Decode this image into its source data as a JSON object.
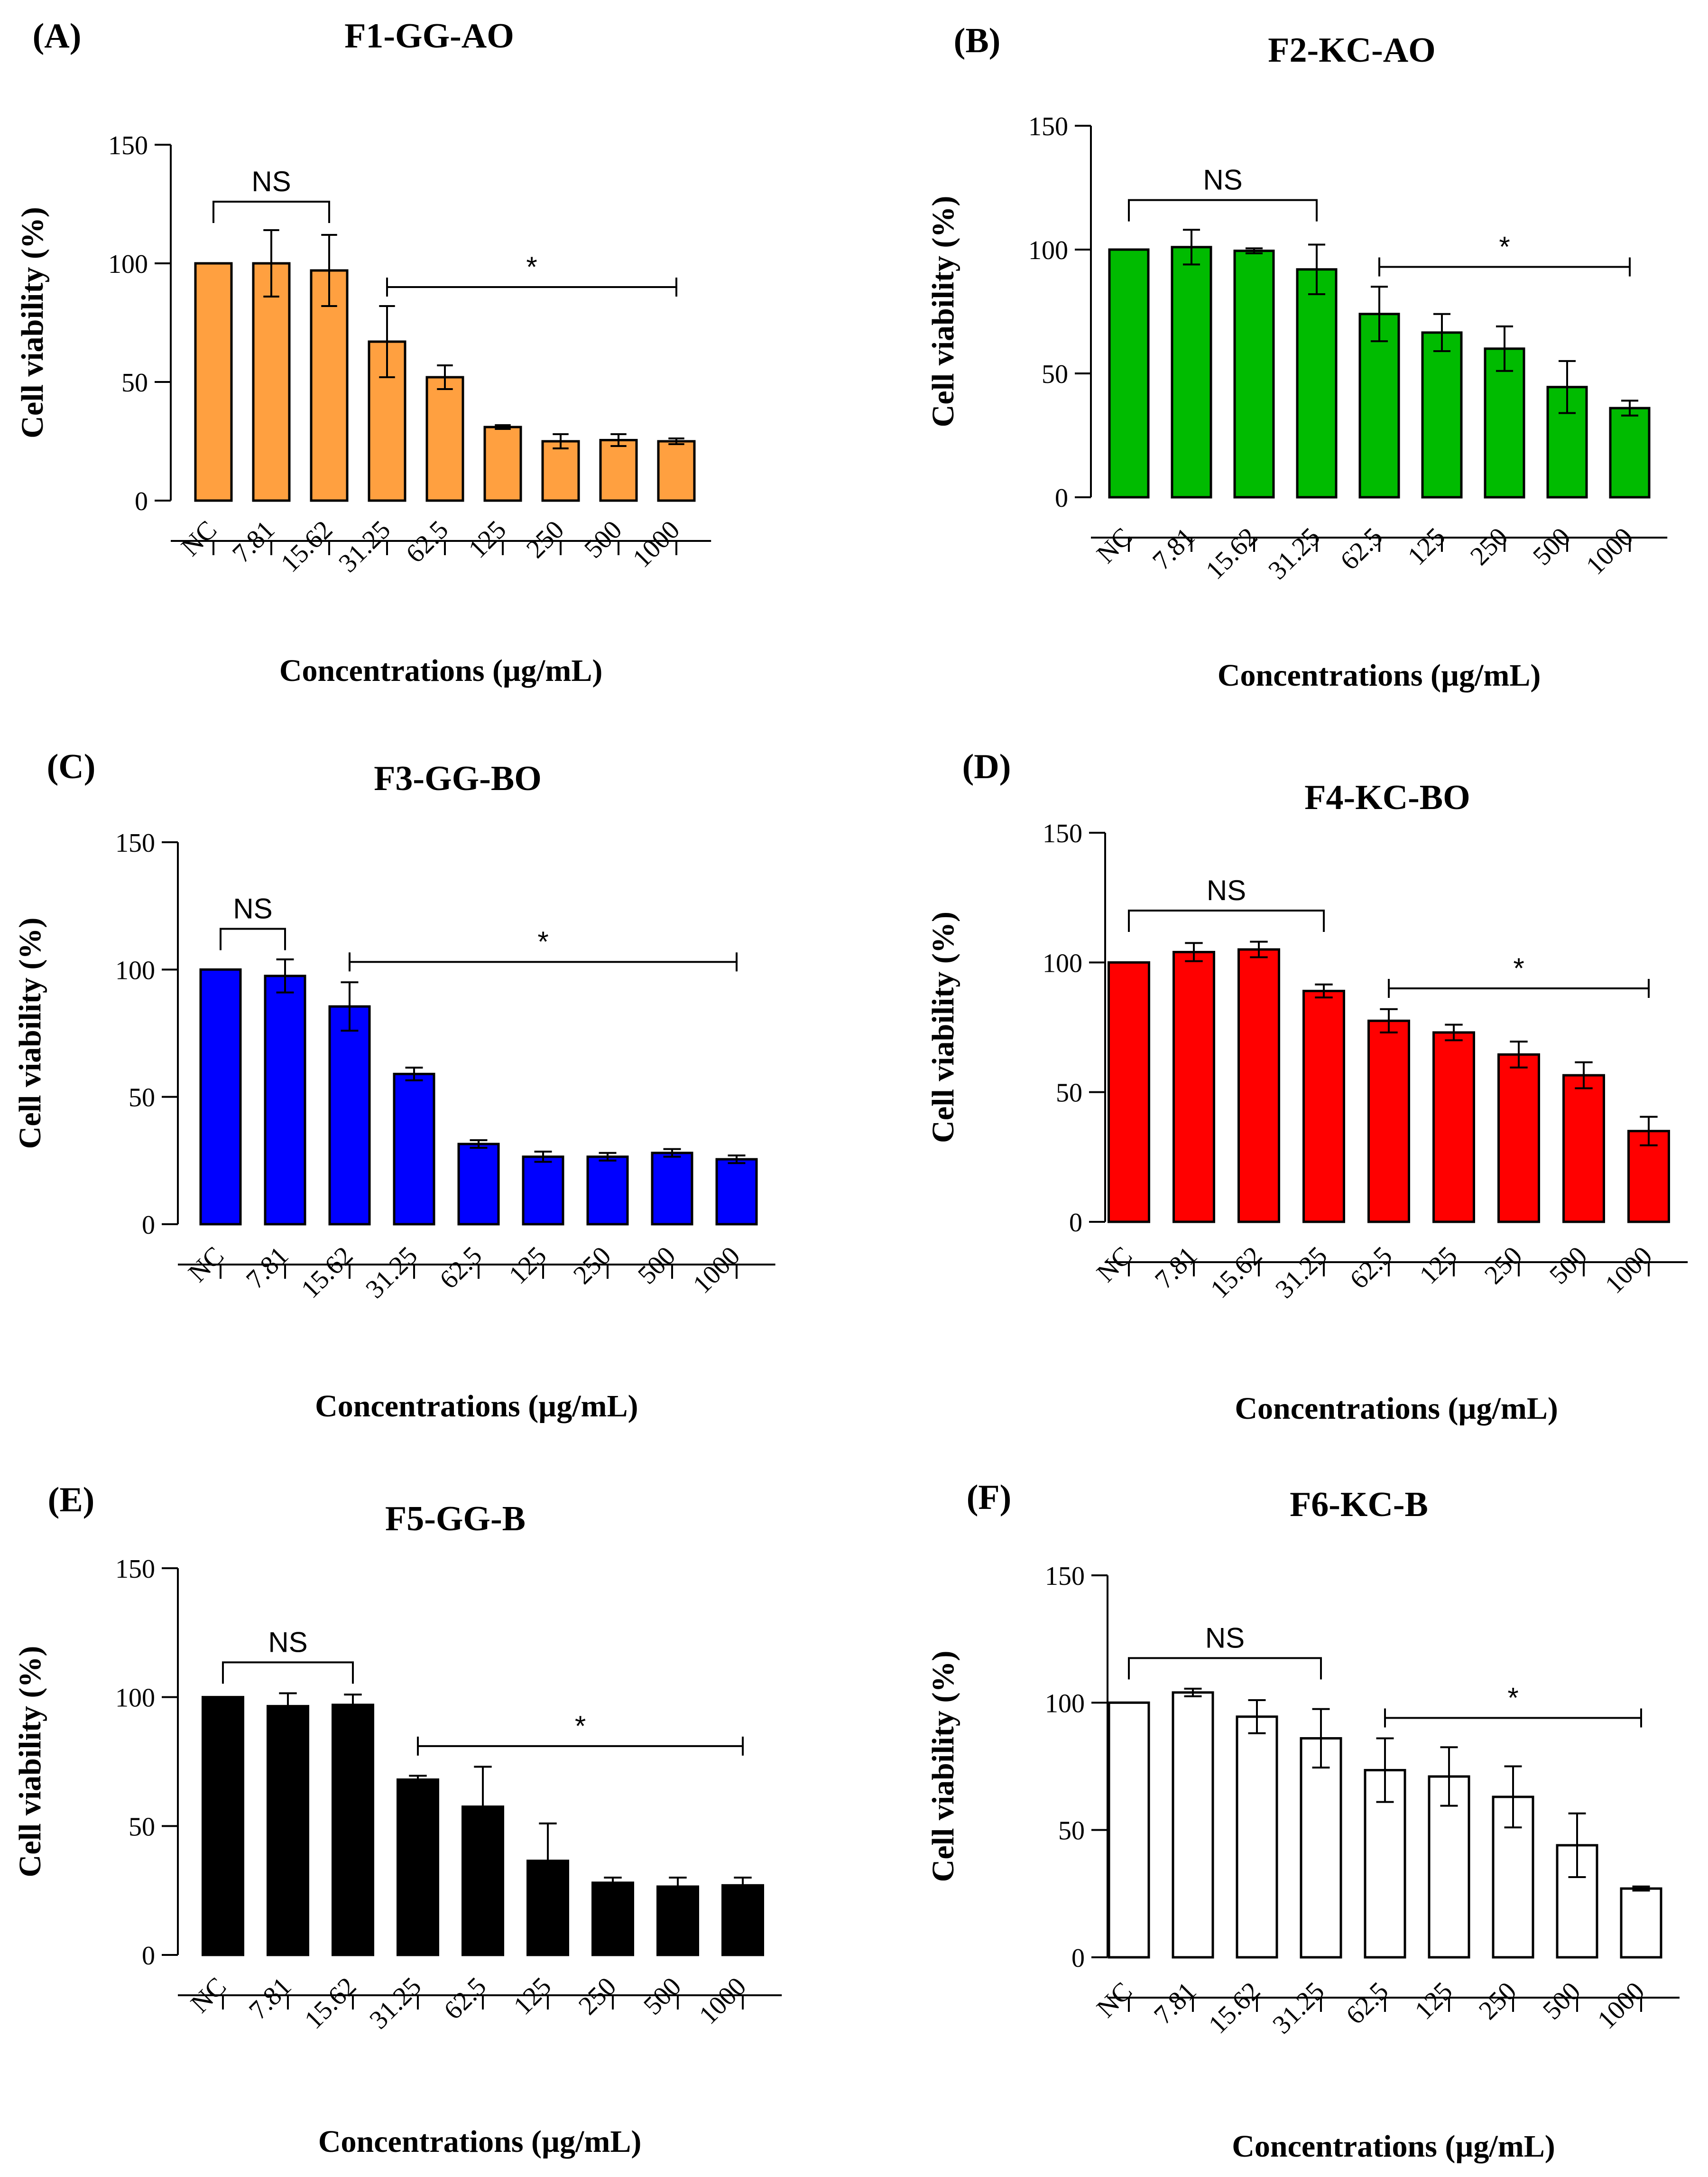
{
  "figure": {
    "xlabel": "Concentrations (µg/mL)",
    "ylabel": "Cell viability (%)",
    "bar_stroke": "#000000"
  },
  "chart_data": [
    {
      "type": "bar",
      "panel": "(A)",
      "title": "F1-GG-AO",
      "color": "#FFA040",
      "categories": [
        "NC",
        "7.81",
        "15.62",
        "31.25",
        "62.5",
        "125",
        "250",
        "500",
        "1000"
      ],
      "values": [
        100,
        100,
        97,
        67,
        52,
        31,
        25,
        25.5,
        25
      ],
      "errors": [
        0,
        14,
        15,
        15,
        5,
        0.8,
        3,
        2.5,
        1.2
      ],
      "xlabel": "Concentrations (µg/mL)",
      "ylabel": "Cell viability (%)",
      "ylim": [
        0,
        150
      ],
      "yticks": [
        "0",
        "50",
        "100",
        "150"
      ],
      "ns": {
        "label": "NS",
        "from": 0,
        "to": 2
      },
      "sig": {
        "label": "*",
        "from": 3,
        "to": 8
      }
    },
    {
      "type": "bar",
      "panel": "(B)",
      "title": "F2-KC-AO",
      "color": "#00BB00",
      "categories": [
        "NC",
        "7.81",
        "15.62",
        "31.25",
        "62.5",
        "125",
        "250",
        "500",
        "1000"
      ],
      "values": [
        100,
        101,
        99.5,
        92,
        74,
        66.5,
        60,
        44.5,
        36
      ],
      "errors": [
        0,
        7,
        1,
        10,
        11,
        7.5,
        9,
        10.5,
        3
      ],
      "xlabel": "Concentrations (µg/mL)",
      "ylabel": "Cell viability (%)",
      "ylim": [
        0,
        150
      ],
      "yticks": [
        "0",
        "50",
        "100",
        "150"
      ],
      "ns": {
        "label": "NS",
        "from": 0,
        "to": 3
      },
      "sig": {
        "label": "*",
        "from": 4,
        "to": 8
      }
    },
    {
      "type": "bar",
      "panel": "(C)",
      "title": "F3-GG-BO",
      "color": "#0000FF",
      "categories": [
        "NC",
        "7.81",
        "15.62",
        "31.25",
        "62.5",
        "125",
        "250",
        "500",
        "1000"
      ],
      "values": [
        100,
        97.5,
        85.5,
        59,
        31.5,
        26.5,
        26.5,
        28,
        25.5
      ],
      "errors": [
        0,
        6.5,
        9.5,
        2.5,
        1.5,
        2,
        1.5,
        1.5,
        1.5
      ],
      "xlabel": "Concentrations (µg/mL)",
      "ylabel": "Cell viability (%)",
      "ylim": [
        0,
        150
      ],
      "yticks": [
        "0",
        "50",
        "100",
        "150"
      ],
      "ns": {
        "label": "NS",
        "from": 0,
        "to": 1
      },
      "sig": {
        "label": "*",
        "from": 2,
        "to": 8
      }
    },
    {
      "type": "bar",
      "panel": "(D)",
      "title": "F4-KC-BO",
      "color": "#FF0000",
      "categories": [
        "NC",
        "7.81",
        "15.62",
        "31.25",
        "62.5",
        "125",
        "250",
        "500",
        "1000"
      ],
      "values": [
        100,
        104,
        105,
        89,
        77.5,
        73,
        64.5,
        56.5,
        35
      ],
      "errors": [
        0,
        3.5,
        3,
        2.5,
        4.5,
        3,
        5,
        5,
        5.5
      ],
      "xlabel": "Concentrations (µg/mL)",
      "ylabel": "Cell viability (%)",
      "ylim": [
        0,
        150
      ],
      "yticks": [
        "0",
        "50",
        "100",
        "150"
      ],
      "ns": {
        "label": "NS",
        "from": 0,
        "to": 3
      },
      "sig": {
        "label": "*",
        "from": 4,
        "to": 8
      }
    },
    {
      "type": "bar",
      "panel": "(E)",
      "title": "F5-GG-B",
      "color": "#000000",
      "categories": [
        "NC",
        "7.81",
        "15.62",
        "31.25",
        "62.5",
        "125",
        "250",
        "500",
        "1000"
      ],
      "values": [
        100,
        96.5,
        97,
        68,
        57.5,
        36.5,
        28,
        26.5,
        27
      ],
      "errors": [
        0,
        5,
        4,
        1.5,
        15.5,
        14.5,
        2,
        3.5,
        3
      ],
      "xlabel": "Concentrations (µg/mL)",
      "ylabel": "Cell viability (%)",
      "ylim": [
        0,
        150
      ],
      "yticks": [
        "0",
        "50",
        "100",
        "150"
      ],
      "ns": {
        "label": "NS",
        "from": 0,
        "to": 2
      },
      "sig": {
        "label": "*",
        "from": 3,
        "to": 8
      }
    },
    {
      "type": "bar",
      "panel": "(F)",
      "title": "F6-KC-B",
      "color": "#FFFFFF",
      "categories": [
        "NC",
        "7.81",
        "15.62",
        "31.25",
        "62.5",
        "125",
        "250",
        "500",
        "1000"
      ],
      "values": [
        100,
        104,
        94.5,
        86,
        73.5,
        71,
        63,
        44,
        27
      ],
      "errors": [
        0,
        1.5,
        6.5,
        11.5,
        12.5,
        11.5,
        12,
        12.5,
        0.8
      ],
      "xlabel": "Concentrations (µg/mL)",
      "ylabel": "Cell viability (%)",
      "ylim": [
        0,
        150
      ],
      "yticks": [
        "0",
        "50",
        "100",
        "150"
      ],
      "ns": {
        "label": "NS",
        "from": 0,
        "to": 3
      },
      "sig": {
        "label": "*",
        "from": 4,
        "to": 8
      }
    }
  ]
}
